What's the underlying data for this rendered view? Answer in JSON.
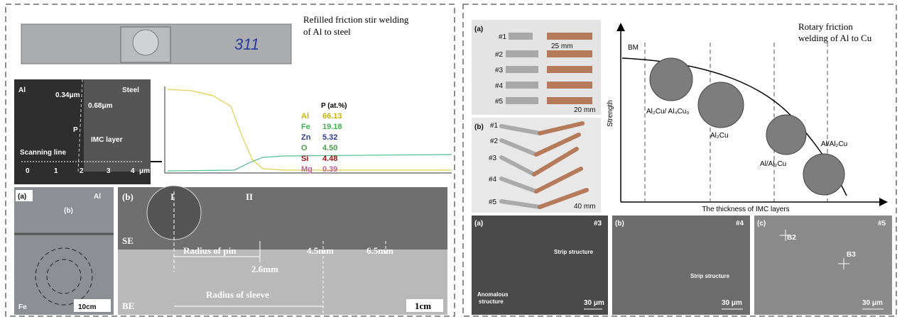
{
  "left_panel": {
    "caption": [
      "Refilled friction stir welding",
      "of Al to steel"
    ],
    "sample_mark": "311",
    "sem": {
      "left_label": "Al",
      "right_label": "Steel",
      "width_1": "0.34μm",
      "width_2": "0.68μm",
      "point": "P",
      "layer": "IMC layer",
      "line": "Scanning line",
      "scale": [
        "0",
        "1",
        "2",
        "3",
        "4",
        "μm"
      ]
    },
    "composition": {
      "header": "P (at.%)",
      "rows": [
        [
          "Al",
          "66.13"
        ],
        [
          "Fe",
          "19.18"
        ],
        [
          "Zn",
          "5.32"
        ],
        [
          "O",
          "4.50"
        ],
        [
          "Si",
          "4.48"
        ],
        [
          "Mg",
          "0.39"
        ]
      ]
    },
    "photo_a": {
      "label": "(a)",
      "top": "Al",
      "inset": "(b)",
      "bottom": "Fe",
      "scale": "10cm"
    },
    "photo_b": {
      "label": "(b)",
      "zone_1": "I",
      "zone_2": "II",
      "se": "SE",
      "be": "BE",
      "pin": "Radius of pin",
      "d1": "2.6mm",
      "d2": "4.5mm",
      "d3": "6.5mm",
      "sleeve": "Radius of sleeve",
      "scale": "1cm"
    }
  },
  "right_panel": {
    "caption": [
      "Rotary friction",
      "welding of Al to Cu"
    ],
    "photo_a": {
      "label": "(a)",
      "samples": [
        "#1",
        "#2",
        "#3",
        "#4",
        "#5"
      ],
      "length": "25 mm",
      "scale": "20 mm"
    },
    "photo_b": {
      "label": "(b)",
      "samples": [
        "#1",
        "#2",
        "#3",
        "#4",
        "#5"
      ],
      "scale": "40 mm"
    },
    "schematic": {
      "y_label": "Strength",
      "x_label": "The thickness of IMC layers",
      "base": "BM",
      "phases": [
        "Al₂Cu/ Al₄Cu₉",
        "Al₂Cu",
        "Al/Al₂Cu",
        "Al/Al₂Cu"
      ]
    },
    "micrographs": [
      {
        "label": "(a)",
        "sample": "#3",
        "notes": [
          "Strip structure",
          "Anomalous",
          "structure"
        ],
        "scale": "30 μm"
      },
      {
        "label": "(b)",
        "sample": "#4",
        "notes": [
          "Strip structure"
        ],
        "scale": "30 μm"
      },
      {
        "label": "(c)",
        "sample": "#5",
        "notes": [
          "B2",
          "B3"
        ],
        "scale": "30 μm"
      }
    ]
  }
}
